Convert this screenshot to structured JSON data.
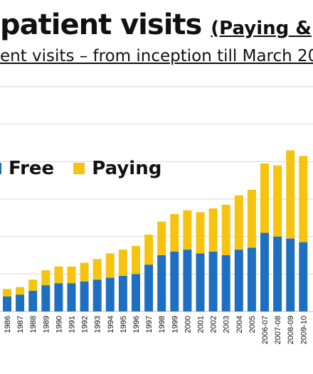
{
  "header": {
    "title": "patient visits",
    "title_suffix": "(Paying &",
    "subtitle": "ent visits – from inception till March 20"
  },
  "colors": {
    "free": "#1f6fc1",
    "paying": "#f6c40f",
    "grid": "#d9d9d9"
  },
  "chart_data": {
    "type": "bar",
    "stacked": true,
    "legend_position": "top-left",
    "grid": true,
    "categories": [
      "1986",
      "1987",
      "1988",
      "1989",
      "1990",
      "1991",
      "1992",
      "1993",
      "1994",
      "1995",
      "1996",
      "1997",
      "1998",
      "1999",
      "2000",
      "2001",
      "2002",
      "2003",
      "2004",
      "2005",
      "2006-07",
      "2007-08",
      "2008-09",
      "2009-10"
    ],
    "series": [
      {
        "name": "Free",
        "values": [
          8,
          9,
          11,
          14,
          15,
          15,
          16,
          17,
          18,
          19,
          20,
          25,
          30,
          32,
          33,
          31,
          32,
          30,
          33,
          34,
          42,
          40,
          39,
          37
        ]
      },
      {
        "name": "Paying",
        "values": [
          4,
          4,
          6,
          8,
          9,
          9,
          10,
          11,
          13,
          14,
          15,
          16,
          18,
          20,
          21,
          22,
          23,
          27,
          29,
          31,
          37,
          38,
          47,
          46
        ]
      }
    ],
    "ylim": [
      0,
      120
    ],
    "y_gridlines": [
      20,
      40,
      60,
      80,
      100,
      120
    ]
  }
}
